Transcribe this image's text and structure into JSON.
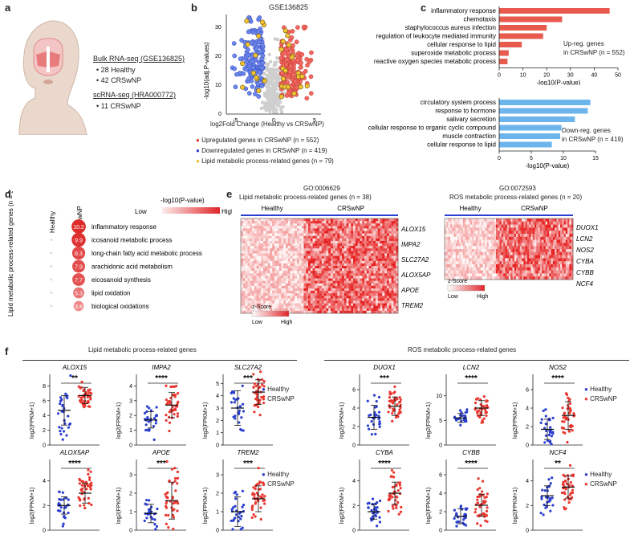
{
  "a": {
    "label": "a",
    "bulk_title": "Bulk RNA-seq (GSE136825)",
    "bulk_items": [
      "28 Healthy",
      "42 CRSwNP"
    ],
    "sc_title": "scRNA-seq (HRA000772)",
    "sc_items": [
      "11 CRSwNP"
    ]
  },
  "b": {
    "label": "b",
    "title": "GSE136825",
    "ylabel": "-log10(adj.P-values)",
    "xlabel": "log2Fold Change (Healthy vs CRSwNP)",
    "legend": [
      {
        "text": "Upregulated genes in CRSwNP (n = 552)",
        "color": "#e8362f"
      },
      {
        "text": "Downregulated genes in CRSwNP (n = 419)",
        "color": "#2b3fcf"
      },
      {
        "text": "Lipid metabolic process-related genes (n = 79)",
        "color": "#f2c230"
      }
    ]
  },
  "c": {
    "label": "c",
    "up_note": [
      "Up-reg. genes",
      "in CRSwNP (n = 552)"
    ],
    "down_note": [
      "Down-reg. genes",
      "in CRSwNP (n = 419)"
    ]
  },
  "d": {
    "label": "d",
    "col_headers": [
      "Healthy",
      "CRSwNP"
    ],
    "side_label": "Lipid metabolic process-related genes (n = 38)",
    "scale_title": "-log10(P-value)",
    "scale_low": "Low",
    "scale_high": "High"
  },
  "e": {
    "label": "e",
    "left_go": "GO:0006629",
    "left_title": "Lipid metabolic process-related genes (n = 38)",
    "right_go": "GO:0072593",
    "right_title": "ROS metabolic process-related genes (n = 20)",
    "group_healthy": "Healthy",
    "group_crs": "CRSwNP",
    "left_genes": [
      "ALOX15",
      "IMPA2",
      "SLC27A2",
      "ALOX5AP",
      "APOE",
      "TREM2"
    ],
    "right_genes": [
      "DUOX1",
      "LCN2",
      "NOS2",
      "CYBA",
      "CYBB",
      "NCF4"
    ],
    "zscore": "z-Score",
    "low": "Low",
    "high": "High"
  },
  "f": {
    "label": "f",
    "left_header": "Lipid metabolic process-related genes",
    "right_header": "ROS metabolic process-related genes",
    "ylabel": "log2(FPKM+1)",
    "legend_healthy": "Healthy",
    "legend_crs": "CRSwNP"
  },
  "chart_data": [
    {
      "id": "c-up",
      "type": "bar",
      "orientation": "horizontal",
      "color": "#e8594e",
      "categories": [
        "inflammatory response",
        "chemotaxis",
        "staphylococcus aureus infection",
        "regulation of leukocyte mediated immunity",
        "cellular response to lipid",
        "superoxide metabolic process",
        "reactive oxygen species metabolic process"
      ],
      "values": [
        46.5,
        26.5,
        20,
        18.5,
        9.5,
        4,
        3.5
      ],
      "xlabel": "-log10(P-value)",
      "xlim": [
        0,
        50
      ],
      "xticks": [
        0,
        10,
        20,
        30,
        40,
        50
      ]
    },
    {
      "id": "c-down",
      "type": "bar",
      "orientation": "horizontal",
      "color": "#6cb4ec",
      "categories": [
        "circulatory system process",
        "response to hormone",
        "salivary secretion",
        "cellular response to organic cyclic compound",
        "muscle contraction",
        "cellular response to lipid"
      ],
      "values": [
        14.2,
        13.8,
        11.8,
        9.7,
        9.5,
        8.2
      ],
      "xlabel": "-log10(P-value)",
      "xlim": [
        0,
        15
      ],
      "xticks": [
        0,
        5,
        10,
        15
      ]
    },
    {
      "id": "d",
      "type": "bubble",
      "terms": [
        "inflammatory response",
        "icosanoid metabolic process",
        "long-chain fatty acid metabolic process",
        "arachidonic acid metabolism",
        "eicosanoid synthesis",
        "lipid oxidation",
        "biological oxidations"
      ],
      "healthy_values": [
        0.6,
        0.6,
        0.6,
        0.6,
        0.6,
        0.6,
        0.6
      ],
      "crswnp_values": [
        10.2,
        9.9,
        8.3,
        7.9,
        7.7,
        5.3,
        3.8
      ],
      "crswnp_labels": [
        "10.2",
        "9.9",
        "8.3",
        "7.9",
        "7.7",
        "5.3",
        "3.8"
      ]
    },
    {
      "id": "f",
      "type": "scatter",
      "ylabel": "log2(FPKM+1)",
      "groups": [
        "Healthy",
        "CRSwNP"
      ],
      "colors": {
        "Healthy": "#2b3fcf",
        "CRSwNP": "#e8362f"
      },
      "panels": [
        {
          "gene": "ALOX15",
          "sig": "**",
          "ylim": [
            0,
            10
          ],
          "yticks": [
            0,
            2,
            4,
            6,
            8,
            10
          ],
          "healthy": {
            "mean": 4.7,
            "sd": 2.0,
            "n": 28
          },
          "crswnp": {
            "mean": 6.7,
            "sd": 1.1,
            "n": 42
          }
        },
        {
          "gene": "IMPA2",
          "sig": "****",
          "ylim": [
            0,
            5
          ],
          "yticks": [
            0,
            1,
            2,
            3,
            4,
            5
          ],
          "healthy": {
            "mean": 1.7,
            "sd": 0.55,
            "n": 28
          },
          "crswnp": {
            "mean": 2.7,
            "sd": 0.85,
            "n": 42
          }
        },
        {
          "gene": "SLC27A2",
          "sig": "***",
          "ylim": [
            0,
            6
          ],
          "yticks": [
            0,
            1,
            2,
            3,
            4,
            5,
            6
          ],
          "healthy": {
            "mean": 3.0,
            "sd": 1.4,
            "n": 28
          },
          "crswnp": {
            "mean": 4.3,
            "sd": 1.0,
            "n": 42
          }
        },
        {
          "gene": "DUOX1",
          "sig": "***",
          "ylim": [
            0,
            8
          ],
          "yticks": [
            0,
            2,
            4,
            6,
            8
          ],
          "healthy": {
            "mean": 3.0,
            "sd": 1.3,
            "n": 28
          },
          "crswnp": {
            "mean": 4.2,
            "sd": 1.0,
            "n": 42
          }
        },
        {
          "gene": "LCN2",
          "sig": "****",
          "ylim": [
            0,
            15
          ],
          "yticks": [
            0,
            5,
            10,
            15
          ],
          "healthy": {
            "mean": 5.5,
            "sd": 0.9,
            "n": 28
          },
          "crswnp": {
            "mean": 7.5,
            "sd": 1.5,
            "n": 42
          }
        },
        {
          "gene": "NOS2",
          "sig": "****",
          "ylim": [
            0,
            8
          ],
          "yticks": [
            0,
            2,
            4,
            6,
            8
          ],
          "healthy": {
            "mean": 1.7,
            "sd": 1.1,
            "n": 28
          },
          "crswnp": {
            "mean": 3.2,
            "sd": 1.5,
            "n": 42
          }
        },
        {
          "gene": "ALOX5AP",
          "sig": "****",
          "ylim": [
            0,
            6
          ],
          "yticks": [
            0,
            2,
            4,
            6
          ],
          "healthy": {
            "mean": 2.0,
            "sd": 0.7,
            "n": 28
          },
          "crswnp": {
            "mean": 3.0,
            "sd": 0.8,
            "n": 42
          }
        },
        {
          "gene": "APOE",
          "sig": "***",
          "ylim": [
            0,
            4
          ],
          "yticks": [
            0,
            1,
            2,
            3,
            4
          ],
          "healthy": {
            "mean": 0.9,
            "sd": 0.5,
            "n": 28
          },
          "crswnp": {
            "mean": 1.6,
            "sd": 1.0,
            "n": 42
          }
        },
        {
          "gene": "TREM2",
          "sig": "***",
          "ylim": [
            0,
            4
          ],
          "yticks": [
            0,
            1,
            2,
            3,
            4
          ],
          "healthy": {
            "mean": 1.0,
            "sd": 0.8,
            "n": 28
          },
          "crswnp": {
            "mean": 1.7,
            "sd": 0.7,
            "n": 42
          }
        },
        {
          "gene": "CYBA",
          "sig": "****",
          "ylim": [
            0,
            6
          ],
          "yticks": [
            0,
            2,
            4,
            6
          ],
          "healthy": {
            "mean": 1.5,
            "sd": 0.6,
            "n": 28
          },
          "crswnp": {
            "mean": 3.0,
            "sd": 0.9,
            "n": 42
          }
        },
        {
          "gene": "CYBB",
          "sig": "****",
          "ylim": [
            0,
            8
          ],
          "yticks": [
            0,
            2,
            4,
            6,
            8
          ],
          "healthy": {
            "mean": 1.5,
            "sd": 0.8,
            "n": 28
          },
          "crswnp": {
            "mean": 2.7,
            "sd": 1.2,
            "n": 42
          }
        },
        {
          "gene": "NCF4",
          "sig": "**",
          "ylim": [
            0,
            6
          ],
          "yticks": [
            0,
            2,
            4,
            6
          ],
          "healthy": {
            "mean": 2.8,
            "sd": 0.8,
            "n": 28
          },
          "crswnp": {
            "mean": 3.5,
            "sd": 0.9,
            "n": 42
          }
        }
      ]
    }
  ]
}
